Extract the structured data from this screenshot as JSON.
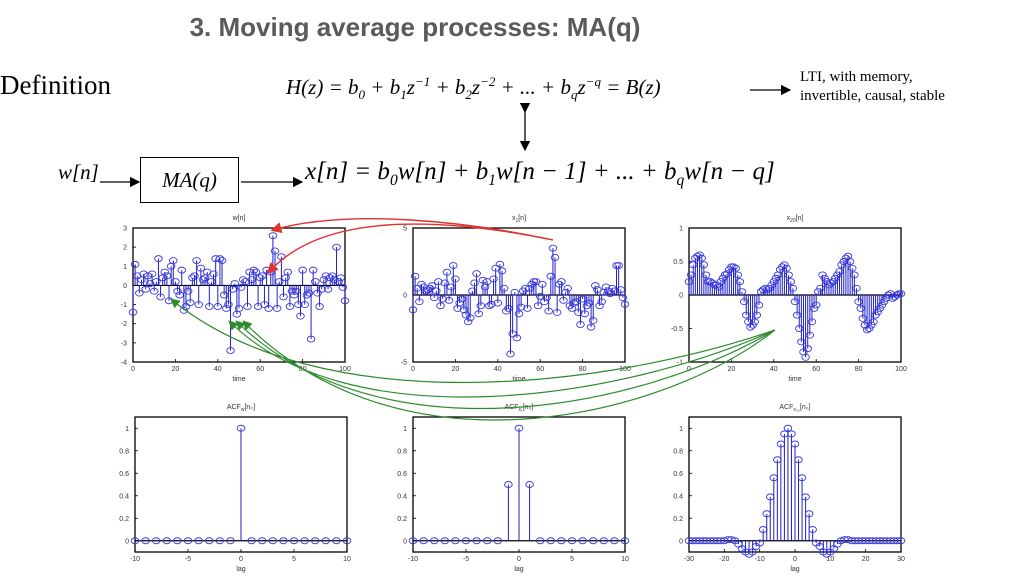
{
  "slide": {
    "title": "3. Moving average processes: MA(q)",
    "definition_label": "Definition",
    "transfer_function": [
      [
        "H",
        "i"
      ],
      [
        "(z) = b",
        "i"
      ],
      [
        "0",
        "sub"
      ],
      [
        " + b",
        "i"
      ],
      [
        "1",
        "sub"
      ],
      [
        "z",
        "i"
      ],
      [
        "−1",
        "sup"
      ],
      [
        " + b",
        "i"
      ],
      [
        "2",
        "sub"
      ],
      [
        "z",
        "i"
      ],
      [
        "−2",
        "sup"
      ],
      [
        " + ... + b",
        "i"
      ],
      [
        "q",
        "sub"
      ],
      [
        "z",
        "i"
      ],
      [
        "−q",
        "sup"
      ],
      [
        " = B(z)",
        "i"
      ]
    ],
    "difference_equation": [
      [
        "x[n] = b",
        "i"
      ],
      [
        "0",
        "sub"
      ],
      [
        "w[n] + b",
        "i"
      ],
      [
        "1",
        "sub"
      ],
      [
        "w[n − 1] + ... + b",
        "i"
      ],
      [
        "q",
        "sub"
      ],
      [
        "w[n − q]",
        "i"
      ]
    ],
    "input_label": "w[n]",
    "block_label": "MA(q)",
    "properties_line1": "LTI, with memory,",
    "properties_line2": "invertible, causal, stable"
  },
  "colors": {
    "stem": "#1f1fc8",
    "marker": "#3a3ae0",
    "red_arrow": "#e03030",
    "green_arrow": "#2e8b2e",
    "title": "#5a5a5a"
  },
  "chart_data": [
    {
      "type": "stem",
      "title": "w",
      "title_sub": "",
      "title_rest": "[n]",
      "xlabel": "time",
      "xlim": [
        0,
        100
      ],
      "ylim": [
        -4,
        3
      ],
      "xticks": [
        "0",
        "20",
        "40",
        "60",
        "80",
        "100"
      ],
      "xtick_values": [
        0,
        20,
        40,
        60,
        80,
        100
      ],
      "yticks": [
        "3",
        "2",
        "1",
        "0",
        "-1",
        "-2",
        "-3",
        "-4"
      ],
      "ytick_values": [
        3,
        2,
        1,
        0,
        -1,
        -2,
        -3,
        -4
      ],
      "x_start": 0,
      "values": [
        -1.4,
        1.1,
        0.5,
        -0.4,
        0.3,
        0.6,
        -0.2,
        0.5,
        0.1,
        0.6,
        -0.3,
        0.2,
        1.4,
        -0.6,
        0.4,
        0.7,
        0.5,
        -0.8,
        1.0,
        1.3,
        0.2,
        -0.3,
        -0.5,
        0.8,
        -1.3,
        -1.1,
        -0.3,
        -0.9,
        0.4,
        0.5,
        1.3,
        -1.0,
        0.9,
        0.3,
        0.4,
        0.7,
        -1.1,
        0.2,
        0.6,
        1.4,
        -1.1,
        1.4,
        1.3,
        -0.5,
        -1.2,
        -1.0,
        -3.4,
        -0.2,
        0.1,
        -1.5,
        -1.2,
        -0.1,
        0.3,
        0.2,
        -1.1,
        0.7,
        0.3,
        0.8,
        0.7,
        -1.1,
        0.4,
        0.5,
        -1.0,
        0.8,
        -1.2,
        0.7,
        2.6,
        1.8,
        -1.2,
        0.2,
        1.5,
        -0.6,
        0.4,
        0.7,
        -1.1,
        -0.3,
        -0.5,
        -0.3,
        -1.0,
        -1.6,
        0.8,
        -1.0,
        -0.5,
        -0.4,
        -2.8,
        0.8,
        0.2,
        -0.4,
        -1.1,
        -0.2,
        0.3,
        0.5,
        -0.2,
        0.4,
        0.5,
        0.3,
        2.0,
        0.2,
        0.4,
        -0.1,
        -0.8
      ]
    },
    {
      "type": "stem",
      "title": "x",
      "title_sub": "1",
      "title_rest": "[n]",
      "xlabel": "time",
      "xlim": [
        0,
        100
      ],
      "ylim": [
        -5,
        5
      ],
      "xticks": [
        "0",
        "20",
        "40",
        "60",
        "80",
        "100"
      ],
      "xtick_values": [
        0,
        20,
        40,
        60,
        80,
        100
      ],
      "yticks": [
        "5",
        "0",
        "-5"
      ],
      "ytick_values": [
        5,
        0,
        -5
      ],
      "x_start": 0,
      "values": [
        -1.1,
        1.4,
        0.5,
        -0.5,
        0.8,
        0.6,
        0.3,
        0.4,
        0.5,
        0.7,
        -0.2,
        0.3,
        1.0,
        -0.8,
        -0.3,
        0.9,
        1.7,
        -0.4,
        0.6,
        2.2,
        1.2,
        -1.0,
        -0.6,
        -0.3,
        -1.1,
        -1.5,
        -2.0,
        -1.7,
        0.3,
        0.9,
        1.6,
        -1.4,
        -0.8,
        1.1,
        0.6,
        1.0,
        -0.8,
        -0.7,
        1.2,
        2.0,
        -0.6,
        2.3,
        1.8,
        0.5,
        -1.2,
        -1.0,
        -4.4,
        -2.9,
        0.2,
        -3.2,
        -1.4,
        -0.9,
        0.3,
        0.5,
        -1.0,
        0.5,
        0.8,
        1.0,
        1.0,
        -0.8,
        -0.1,
        0.8,
        -0.5,
        -0.2,
        -1.2,
        1.4,
        3.5,
        2.8,
        -1.3,
        0.8,
        1.0,
        -0.4,
        0.2,
        0.5,
        -0.8,
        -1.0,
        -0.6,
        -0.5,
        -1.3,
        -2.2,
        -0.3,
        -1.4,
        -0.8,
        -0.6,
        -2.4,
        -1.9,
        0.7,
        0.4,
        -0.8,
        -0.5,
        0.2,
        0.6,
        0.3,
        0.1,
        0.5,
        0.3,
        2.2,
        2.2,
        0.4,
        -0.2,
        -0.7
      ]
    },
    {
      "type": "stem",
      "title": "x",
      "title_sub": "20",
      "title_rest": "[n]",
      "xlabel": "time",
      "xlim": [
        0,
        100
      ],
      "ylim": [
        -1,
        1
      ],
      "xticks": [
        "0",
        "20",
        "40",
        "60",
        "80",
        "100"
      ],
      "xtick_values": [
        0,
        20,
        40,
        60,
        80,
        100
      ],
      "yticks": [
        "1",
        "0.5",
        "0",
        "-0.5",
        "-1"
      ],
      "ytick_values": [
        1,
        0.5,
        0,
        -0.5,
        -1
      ],
      "x_start": 0,
      "values": [
        0.2,
        0.3,
        0.45,
        0.55,
        0.58,
        0.6,
        0.55,
        0.45,
        0.3,
        0.2,
        0.2,
        0.18,
        0.15,
        0.15,
        0.12,
        0.2,
        0.25,
        0.3,
        0.32,
        0.38,
        0.42,
        0.42,
        0.4,
        0.3,
        0.2,
        0.05,
        -0.1,
        -0.3,
        -0.4,
        -0.48,
        -0.45,
        -0.4,
        -0.3,
        -0.15,
        0.05,
        0.08,
        0.1,
        0.08,
        0.1,
        0.15,
        0.2,
        0.25,
        0.3,
        0.38,
        0.42,
        0.45,
        0.4,
        0.3,
        0.2,
        0.1,
        -0.1,
        -0.3,
        -0.5,
        -0.7,
        -0.85,
        -0.93,
        -0.8,
        -0.6,
        -0.4,
        -0.2,
        -0.15,
        0.05,
        0.1,
        0.3,
        0.25,
        0.2,
        0.15,
        0.18,
        0.2,
        0.25,
        0.3,
        0.35,
        0.45,
        0.5,
        0.55,
        0.58,
        0.5,
        0.4,
        0.3,
        0.1,
        -0.1,
        -0.2,
        -0.35,
        -0.45,
        -0.52,
        -0.5,
        -0.45,
        -0.4,
        -0.3,
        -0.25,
        -0.2,
        -0.15,
        -0.1,
        -0.05,
        0,
        0.02,
        -0.05,
        -0.03,
        0,
        0.02,
        0.02
      ]
    },
    {
      "type": "stem",
      "title": "ACF",
      "title_sub": "w",
      "title_rest": "[n₀]",
      "xlabel": "lag",
      "xlim": [
        -10,
        10
      ],
      "ylim": [
        -0.1,
        1.1
      ],
      "xticks": [
        "-10",
        "-5",
        "0",
        "5",
        "10"
      ],
      "xtick_values": [
        -10,
        -5,
        0,
        5,
        10
      ],
      "yticks": [
        "1",
        "0.8",
        "0.6",
        "0.4",
        "0.2",
        "0"
      ],
      "ytick_values": [
        1,
        0.8,
        0.6,
        0.4,
        0.2,
        0
      ],
      "x_start": -10,
      "values": [
        0,
        0,
        0,
        0,
        0,
        0,
        0,
        0,
        0,
        0,
        1,
        0,
        0,
        0,
        0,
        0,
        0,
        0,
        0,
        0,
        0
      ]
    },
    {
      "type": "stem",
      "title": "ACF",
      "title_sub": "x₁",
      "title_rest": "[n₀]",
      "xlabel": "lag",
      "xlim": [
        -10,
        10
      ],
      "ylim": [
        -0.1,
        1.1
      ],
      "xticks": [
        "-10",
        "-5",
        "0",
        "5",
        "10"
      ],
      "xtick_values": [
        -10,
        -5,
        0,
        5,
        10
      ],
      "yticks": [
        "1",
        "0.8",
        "0.6",
        "0.4",
        "0.2",
        "0"
      ],
      "ytick_values": [
        1,
        0.8,
        0.6,
        0.4,
        0.2,
        0
      ],
      "x_start": -10,
      "values": [
        0,
        0,
        0,
        0,
        0,
        0,
        0,
        0,
        0,
        0.5,
        1,
        0.5,
        0,
        0,
        0,
        0,
        0,
        0,
        0,
        0,
        0
      ]
    },
    {
      "type": "stem",
      "title": "ACF",
      "title_sub": "x₂₀",
      "title_rest": "[n₀]",
      "xlabel": "lag",
      "xlim": [
        -30,
        30
      ],
      "ylim": [
        -0.1,
        1.1
      ],
      "xticks": [
        "-30",
        "-20",
        "-10",
        "0",
        "10",
        "20",
        "30"
      ],
      "xtick_values": [
        -30,
        -20,
        -10,
        0,
        10,
        20,
        30
      ],
      "yticks": [
        "1",
        "0.8",
        "0.6",
        "0.4",
        "0.2",
        "0"
      ],
      "ytick_values": [
        1,
        0.8,
        0.6,
        0.4,
        0.2,
        0
      ],
      "x_start": -30,
      "values": [
        0,
        0,
        0,
        0,
        0,
        0,
        0,
        0,
        0,
        0,
        0,
        0.01,
        0.01,
        0,
        -0.03,
        -0.07,
        -0.1,
        -0.12,
        -0.1,
        -0.05,
        -0.02,
        0.1,
        0.24,
        0.39,
        0.56,
        0.72,
        0.86,
        0.95,
        1,
        0.95,
        0.86,
        0.72,
        0.56,
        0.39,
        0.24,
        0.1,
        -0.02,
        -0.05,
        -0.1,
        -0.12,
        -0.1,
        -0.07,
        -0.03,
        0,
        0.01,
        0.01,
        0,
        0,
        0,
        0,
        0,
        0,
        0,
        0,
        0,
        0,
        0,
        0,
        0,
        0,
        0
      ]
    }
  ]
}
